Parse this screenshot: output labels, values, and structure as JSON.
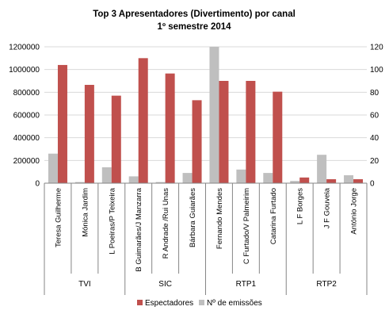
{
  "chart_data": {
    "type": "bar",
    "title": "Top 3 Apresentadores (Divertimento) por canal",
    "subtitle": "1º semestre 2014",
    "categories": [
      "Teresa Guilherme",
      "Mónica Jardim",
      "L Poeiras/P Teixeira",
      "B Guimarães/J Manzarra",
      "R Andrade /Rui Unas",
      "Bárbara Guiarães",
      "Fernando Mendes",
      "C Furtado/V Palmeirim",
      "Catarina Furtado",
      "L F Borges",
      "J F Gouveia",
      "António Jorge"
    ],
    "groups": [
      {
        "label": "TVI",
        "count": 3
      },
      {
        "label": "SIC",
        "count": 3
      },
      {
        "label": "RTP1",
        "count": 3
      },
      {
        "label": "RTP2",
        "count": 3
      }
    ],
    "series": [
      {
        "name": "Espectadores",
        "axis": "left",
        "color": "#c0504d",
        "values": [
          1040000,
          865000,
          770000,
          1100000,
          965000,
          730000,
          900000,
          900000,
          805000,
          50000,
          35000,
          35000
        ]
      },
      {
        "name": "Nº de emissões",
        "axis": "right",
        "color": "#bfbfbf",
        "values": [
          26,
          1,
          14,
          6,
          1,
          9,
          120,
          12,
          9,
          2,
          25,
          7
        ]
      }
    ],
    "y_left": {
      "min": 0,
      "max": 1200000,
      "ticks": [
        "0",
        "200000",
        "400000",
        "600000",
        "800000",
        "1000000",
        "1200000"
      ]
    },
    "y_right": {
      "min": 0,
      "max": 120,
      "ticks": [
        "0",
        "20",
        "40",
        "60",
        "80",
        "100",
        "120"
      ]
    },
    "grid": true,
    "legend_position": "bottom"
  }
}
